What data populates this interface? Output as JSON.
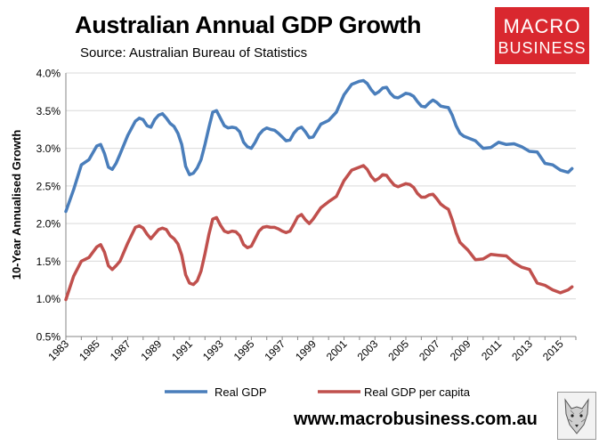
{
  "header": {
    "title": "Australian Annual GDP Growth",
    "subtitle": "Source: Australian Bureau of Statistics"
  },
  "brand": {
    "line1": "MACRO",
    "line2": "BUSINESS",
    "color": "#d9282f"
  },
  "footer": {
    "url": "www.macrobusiness.com.au",
    "logo_icon": "wolf-logo-icon"
  },
  "chart_data": {
    "type": "line",
    "title": "Australian Annual GDP Growth",
    "xlabel": "",
    "ylabel": "10-Year Annualised Growth",
    "xlim": [
      1983,
      2016
    ],
    "ylim": [
      0.5,
      4.0
    ],
    "yticks": [
      "0.5%",
      "1.0%",
      "1.5%",
      "2.0%",
      "2.5%",
      "3.0%",
      "3.5%",
      "4.0%"
    ],
    "ytick_values": [
      0.5,
      1.0,
      1.5,
      2.0,
      2.5,
      3.0,
      3.5,
      4.0
    ],
    "xticks": [
      "1983",
      "1985",
      "1987",
      "1989",
      "1991",
      "1993",
      "1995",
      "1997",
      "1999",
      "2001",
      "2003",
      "2005",
      "2007",
      "2009",
      "2011",
      "2013",
      "2015"
    ],
    "xtick_values": [
      1983,
      1985,
      1987,
      1989,
      1991,
      1993,
      1995,
      1997,
      1999,
      2001,
      2003,
      2005,
      2007,
      2009,
      2011,
      2013,
      2015
    ],
    "grid": true,
    "legend_position": "bottom",
    "series": [
      {
        "name": "Real GDP",
        "color": "#4a7ebb",
        "x": [
          1983.0,
          1983.5,
          1984.0,
          1984.5,
          1985.0,
          1985.25,
          1985.5,
          1985.75,
          1986.0,
          1986.25,
          1986.5,
          1987.0,
          1987.5,
          1987.75,
          1988.0,
          1988.25,
          1988.5,
          1988.75,
          1989.0,
          1989.25,
          1989.5,
          1989.75,
          1990.0,
          1990.25,
          1990.5,
          1990.75,
          1991.0,
          1991.25,
          1991.5,
          1991.75,
          1992.0,
          1992.25,
          1992.5,
          1992.75,
          1993.0,
          1993.25,
          1993.5,
          1993.75,
          1994.0,
          1994.25,
          1994.5,
          1994.75,
          1995.0,
          1995.25,
          1995.5,
          1995.75,
          1996.0,
          1996.25,
          1996.5,
          1996.75,
          1997.0,
          1997.25,
          1997.5,
          1997.75,
          1998.0,
          1998.25,
          1998.5,
          1998.75,
          1999.0,
          1999.5,
          2000.0,
          2000.5,
          2001.0,
          2001.5,
          2002.0,
          2002.25,
          2002.5,
          2002.75,
          2003.0,
          2003.25,
          2003.5,
          2003.75,
          2004.0,
          2004.25,
          2004.5,
          2004.75,
          2005.0,
          2005.25,
          2005.5,
          2005.75,
          2006.0,
          2006.25,
          2006.5,
          2006.75,
          2007.0,
          2007.25,
          2007.5,
          2007.75,
          2008.0,
          2008.25,
          2008.5,
          2008.75,
          2009.0,
          2009.5,
          2010.0,
          2010.5,
          2011.0,
          2011.5,
          2012.0,
          2012.5,
          2013.0,
          2013.5,
          2014.0,
          2014.5,
          2015.0,
          2015.5,
          2015.75
        ],
        "values": [
          2.16,
          2.45,
          2.78,
          2.85,
          3.03,
          3.05,
          2.93,
          2.75,
          2.72,
          2.8,
          2.92,
          3.17,
          3.36,
          3.4,
          3.38,
          3.3,
          3.28,
          3.38,
          3.44,
          3.46,
          3.4,
          3.33,
          3.29,
          3.2,
          3.05,
          2.76,
          2.65,
          2.67,
          2.74,
          2.85,
          3.05,
          3.27,
          3.48,
          3.5,
          3.4,
          3.3,
          3.27,
          3.28,
          3.27,
          3.22,
          3.08,
          3.02,
          3.0,
          3.08,
          3.18,
          3.24,
          3.27,
          3.25,
          3.24,
          3.2,
          3.15,
          3.1,
          3.11,
          3.2,
          3.26,
          3.28,
          3.22,
          3.14,
          3.15,
          3.32,
          3.37,
          3.48,
          3.71,
          3.85,
          3.89,
          3.9,
          3.86,
          3.78,
          3.72,
          3.75,
          3.8,
          3.81,
          3.73,
          3.68,
          3.67,
          3.7,
          3.73,
          3.72,
          3.69,
          3.62,
          3.56,
          3.55,
          3.6,
          3.64,
          3.61,
          3.56,
          3.55,
          3.54,
          3.44,
          3.3,
          3.2,
          3.16,
          3.14,
          3.1,
          3.0,
          3.01,
          3.08,
          3.05,
          3.06,
          3.02,
          2.96,
          2.95,
          2.8,
          2.78,
          2.71,
          2.68,
          2.73
        ]
      },
      {
        "name": "Real GDP per capita",
        "color": "#c0504d",
        "x": [
          1983.0,
          1983.5,
          1984.0,
          1984.5,
          1985.0,
          1985.25,
          1985.5,
          1985.75,
          1986.0,
          1986.25,
          1986.5,
          1987.0,
          1987.5,
          1987.75,
          1988.0,
          1988.25,
          1988.5,
          1988.75,
          1989.0,
          1989.25,
          1989.5,
          1989.75,
          1990.0,
          1990.25,
          1990.5,
          1990.75,
          1991.0,
          1991.25,
          1991.5,
          1991.75,
          1992.0,
          1992.25,
          1992.5,
          1992.75,
          1993.0,
          1993.25,
          1993.5,
          1993.75,
          1994.0,
          1994.25,
          1994.5,
          1994.75,
          1995.0,
          1995.25,
          1995.5,
          1995.75,
          1996.0,
          1996.25,
          1996.5,
          1996.75,
          1997.0,
          1997.25,
          1997.5,
          1997.75,
          1998.0,
          1998.25,
          1998.5,
          1998.75,
          1999.0,
          1999.5,
          2000.0,
          2000.5,
          2001.0,
          2001.5,
          2002.0,
          2002.25,
          2002.5,
          2002.75,
          2003.0,
          2003.25,
          2003.5,
          2003.75,
          2004.0,
          2004.25,
          2004.5,
          2004.75,
          2005.0,
          2005.25,
          2005.5,
          2005.75,
          2006.0,
          2006.25,
          2006.5,
          2006.75,
          2007.0,
          2007.25,
          2007.5,
          2007.75,
          2008.0,
          2008.25,
          2008.5,
          2008.75,
          2009.0,
          2009.5,
          2010.0,
          2010.5,
          2011.0,
          2011.5,
          2012.0,
          2012.5,
          2013.0,
          2013.5,
          2014.0,
          2014.5,
          2015.0,
          2015.5,
          2015.75
        ],
        "values": [
          0.99,
          1.3,
          1.5,
          1.55,
          1.69,
          1.72,
          1.62,
          1.44,
          1.39,
          1.44,
          1.5,
          1.74,
          1.95,
          1.97,
          1.94,
          1.86,
          1.8,
          1.86,
          1.92,
          1.94,
          1.92,
          1.84,
          1.8,
          1.73,
          1.58,
          1.32,
          1.21,
          1.19,
          1.24,
          1.37,
          1.6,
          1.85,
          2.06,
          2.08,
          1.98,
          1.9,
          1.88,
          1.9,
          1.89,
          1.84,
          1.72,
          1.68,
          1.7,
          1.8,
          1.9,
          1.95,
          1.96,
          1.95,
          1.95,
          1.93,
          1.9,
          1.88,
          1.9,
          1.99,
          2.09,
          2.12,
          2.05,
          2.0,
          2.06,
          2.21,
          2.29,
          2.36,
          2.57,
          2.71,
          2.75,
          2.77,
          2.72,
          2.63,
          2.57,
          2.6,
          2.65,
          2.64,
          2.57,
          2.51,
          2.49,
          2.51,
          2.53,
          2.52,
          2.48,
          2.4,
          2.35,
          2.35,
          2.38,
          2.39,
          2.33,
          2.26,
          2.22,
          2.19,
          2.05,
          1.88,
          1.75,
          1.7,
          1.65,
          1.52,
          1.53,
          1.59,
          1.58,
          1.57,
          1.48,
          1.42,
          1.39,
          1.21,
          1.18,
          1.12,
          1.08,
          1.12,
          1.16
        ]
      }
    ]
  }
}
